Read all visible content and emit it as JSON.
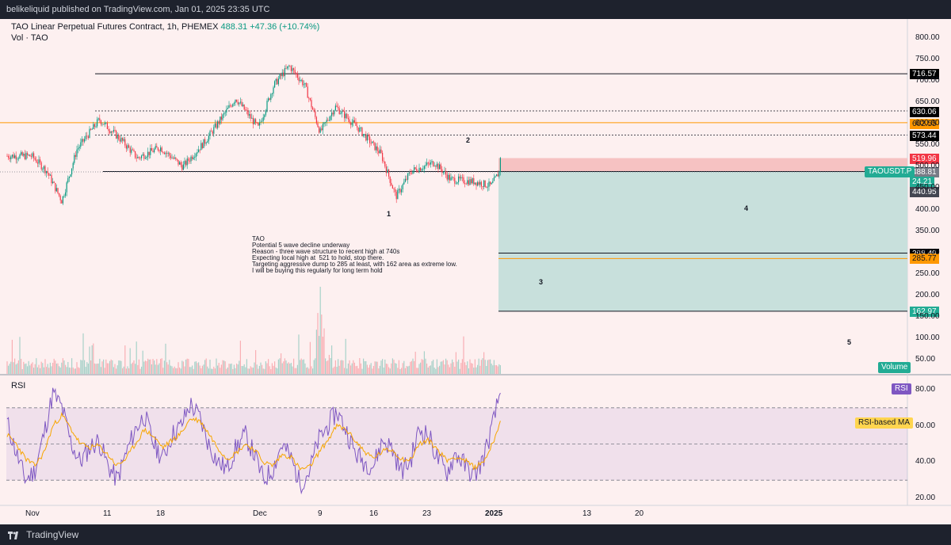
{
  "header": {
    "published": "belikeliquid published on TradingView.com, Jan 01, 2025 23:35 UTC",
    "symbol_title": "TAO Linear Perpetual Futures Contract, 1h, PHEMEX",
    "last_price": "488.31",
    "change": "+47.36 (+10.74%)",
    "vol_label": "Vol · TAO"
  },
  "footer": {
    "brand": "TradingView"
  },
  "note_lines": [
    "TAO",
    "Potential 5 wave decline underway",
    "Reason - three wave structure to recent high at 740s",
    "Expecting local high at  521 to hold, stop there.",
    "Targeting aggressive dump to 285 at least, with 162 area as extreme low.",
    "I will be buying this regularly for long term hold"
  ],
  "waves": [
    "1",
    "2",
    "3",
    "4",
    "5"
  ],
  "price_tags": [
    {
      "text": "716.57",
      "bg": "#000000",
      "fg": "#ffffff"
    },
    {
      "text": "630.06",
      "bg": "#000000",
      "fg": "#ffffff"
    },
    {
      "text": "602.55",
      "bg": "#ff9800",
      "fg": "#131722"
    },
    {
      "text": "573.44",
      "bg": "#000000",
      "fg": "#ffffff"
    },
    {
      "text": "519.96",
      "bg": "#f23645",
      "fg": "#ffffff"
    },
    {
      "text": "488.81",
      "bg": "#787b86",
      "fg": "#ffffff"
    },
    {
      "text": "24.21",
      "bg": "#22ab94",
      "fg": "#ffffff"
    },
    {
      "text": "440.95",
      "bg": "#434651",
      "fg": "#ffffff"
    },
    {
      "text": "298.49",
      "bg": "#000000",
      "fg": "#ffffff"
    },
    {
      "text": "285.77",
      "bg": "#ff9800",
      "fg": "#131722"
    },
    {
      "text": "162.97",
      "bg": "#22ab94",
      "fg": "#ffffff"
    }
  ],
  "symbol_badge": "TAOUSDT.P",
  "volume_badge": "Volume",
  "rsi": {
    "label": "RSI",
    "badge": "RSI",
    "ma_badge": "RSI-based MA"
  },
  "colors": {
    "background": "#fdf0f0",
    "up": "#089981",
    "down": "#f23645",
    "rsi_line": "#7e57c2",
    "rsi_ma": "#f7a600",
    "fib": "#ff9800",
    "target_zone": "#c8e0dc",
    "stop_zone": "#f6c2c2"
  },
  "chart_data": [
    {
      "type": "candlestick",
      "title": "TAO Linear Perpetual Futures Contract, 1h, PHEMEX",
      "y_ticks": [
        800,
        750,
        700,
        650,
        600,
        550,
        500,
        450,
        400,
        350,
        300,
        250,
        200,
        150,
        100,
        50
      ],
      "y_tick_labels": [
        "800.00",
        "750.00",
        "700.00",
        "650.00",
        "600.00",
        "550.00",
        "500.00",
        "450.00",
        "400.00",
        "350.00",
        "300.00",
        "250.00",
        "200.00",
        "150.00",
        "100.00",
        "50.00"
      ],
      "ylim": [
        20,
        820
      ],
      "x_tick_labels": [
        "Nov",
        "11",
        "18",
        "Dec",
        "9",
        "16",
        "23",
        "2025",
        "13",
        "20"
      ],
      "price_path": [
        [
          "Nov 1",
          525
        ],
        [
          "Nov 3",
          490
        ],
        [
          "Nov 5",
          420
        ],
        [
          "Nov 7",
          540
        ],
        [
          "Nov 10",
          610
        ],
        [
          "Nov 13",
          560
        ],
        [
          "Nov 15",
          520
        ],
        [
          "Nov 18",
          545
        ],
        [
          "Nov 21",
          500
        ],
        [
          "Nov 24",
          560
        ],
        [
          "Nov 28",
          660
        ],
        [
          "Dec 1",
          590
        ],
        [
          "Dec 3",
          690
        ],
        [
          "Dec 5",
          735
        ],
        [
          "Dec 7",
          690
        ],
        [
          "Dec 9",
          580
        ],
        [
          "Dec 11",
          640
        ],
        [
          "Dec 14",
          590
        ],
        [
          "Dec 17",
          530
        ],
        [
          "Dec 19",
          430
        ],
        [
          "Dec 21",
          490
        ],
        [
          "Dec 24",
          510
        ],
        [
          "Dec 26",
          470
        ],
        [
          "Dec 29",
          465
        ],
        [
          "Dec 31",
          455
        ],
        [
          "Jan 1",
          488
        ]
      ],
      "levels": [
        716.57,
        630.06,
        602.55,
        573.44,
        519.96,
        488.81,
        440.95,
        298.49,
        285.77,
        162.97
      ],
      "volume_peak_date": "Dec 9"
    },
    {
      "type": "line",
      "title": "RSI",
      "y_ticks": [
        80,
        60,
        40,
        20
      ],
      "y_tick_labels": [
        "80.00",
        "60.00",
        "40.00",
        "20.00"
      ],
      "ylim": [
        16,
        86
      ],
      "bands": [
        70,
        50,
        30
      ],
      "series": [
        {
          "name": "RSI",
          "values": [
            62,
            45,
            30,
            35,
            55,
            78,
            70,
            50,
            40,
            48,
            52,
            38,
            30,
            45,
            58,
            66,
            50,
            42,
            55,
            60,
            72,
            65,
            50,
            40,
            36,
            48,
            55,
            44,
            30,
            36,
            50,
            42,
            28,
            35,
            52,
            60,
            68,
            58,
            45,
            40,
            38,
            52,
            48,
            35,
            40,
            58,
            55,
            42,
            34,
            45,
            38,
            32,
            42,
            60,
            82
          ]
        },
        {
          "name": "RSI-based MA",
          "values": [
            55,
            50,
            42,
            38,
            45,
            60,
            66,
            58,
            50,
            48,
            49,
            44,
            38,
            42,
            50,
            58,
            54,
            48,
            52,
            56,
            64,
            63,
            56,
            48,
            42,
            45,
            50,
            47,
            40,
            38,
            44,
            43,
            36,
            37,
            45,
            52,
            60,
            58,
            52,
            46,
            42,
            46,
            47,
            42,
            41,
            50,
            52,
            47,
            41,
            43,
            41,
            37,
            40,
            50,
            65
          ]
        }
      ]
    }
  ]
}
